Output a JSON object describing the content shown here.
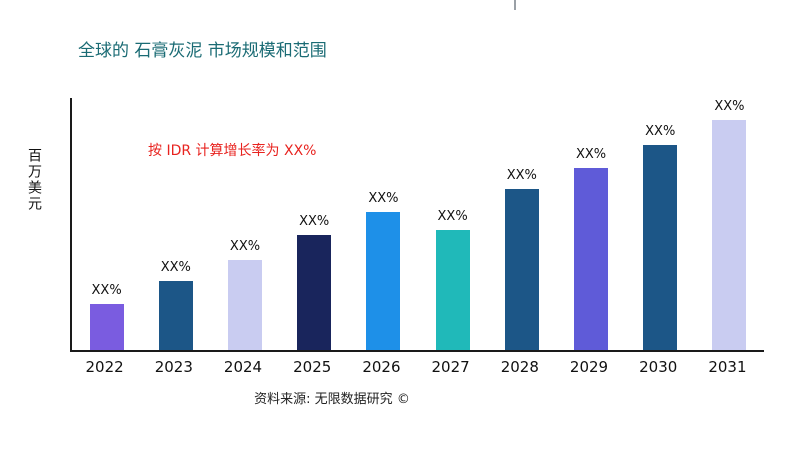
{
  "page": {
    "title": "全球的 石膏灰泥 市场规模和范围",
    "annotation": "按 IDR 计算增长率为 XX%",
    "ylabel": "百万美元",
    "source": "资料来源: 无限数据研究 ©",
    "title_color": "#1A6B74",
    "annotation_color": "#E8231F"
  },
  "chart_data": {
    "type": "bar",
    "title": "全球的 石膏灰泥 市场规模和范围",
    "categories": [
      "2022",
      "2023",
      "2024",
      "2025",
      "2026",
      "2027",
      "2028",
      "2029",
      "2030",
      "2031"
    ],
    "values": [
      20,
      30,
      39,
      50,
      60,
      52,
      70,
      79,
      89,
      100
    ],
    "bar_labels": [
      "XX%",
      "XX%",
      "XX%",
      "XX%",
      "XX%",
      "XX%",
      "XX%",
      "XX%",
      "XX%",
      "XX%"
    ],
    "colors": [
      "#7A5CE0",
      "#1C5687",
      "#C9CCF1",
      "#19255C",
      "#1E90E8",
      "#20B9B9",
      "#1C5687",
      "#5F5BD8",
      "#1C5687",
      "#C9CCF1"
    ],
    "xlabel": "",
    "ylabel": "百万美元",
    "ylim": [
      0,
      100
    ],
    "grid": false,
    "legend": "none",
    "annotation": "按 IDR 计算增长率为 XX%"
  }
}
